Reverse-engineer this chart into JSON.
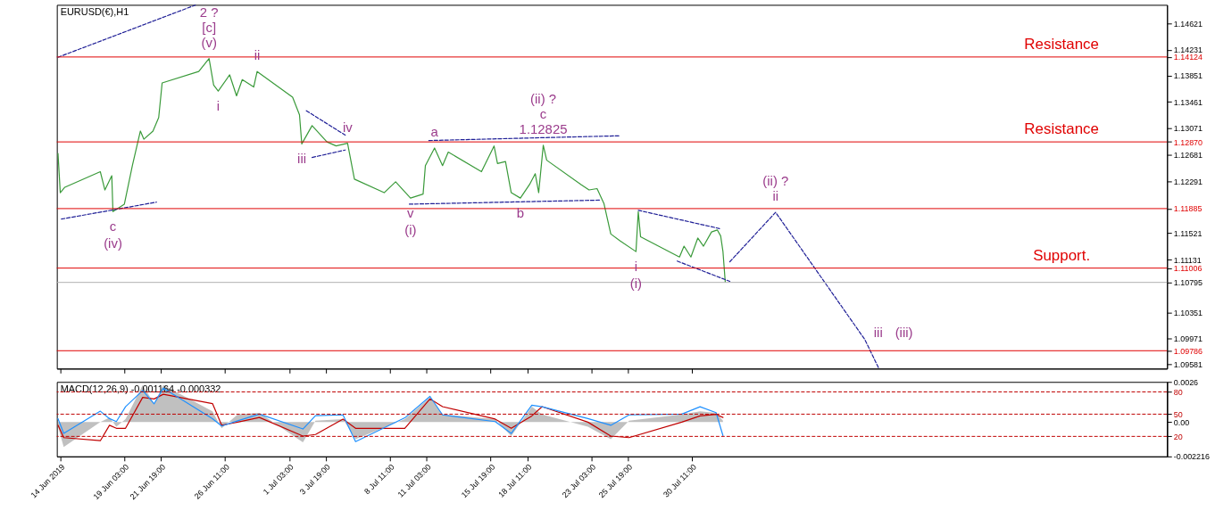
{
  "chart_data": [
    {
      "type": "line",
      "title": "EURUSD(€),H1",
      "tick_labels": "y",
      "xlim": [
        "2019-06-14T05:00",
        "2019-09-03T01:00"
      ],
      "xticks": [
        {
          "value": "2019-06-14T11:00",
          "label": null
        },
        {
          "value": "2019-06-19T03:00",
          "label": null
        },
        {
          "value": "2019-06-21T19:00",
          "label": null
        },
        {
          "value": "2019-06-26T11:00",
          "label": null
        },
        {
          "value": "2019-07-01T03:00",
          "label": null
        },
        {
          "value": "2019-07-03T19:00",
          "label": null
        },
        {
          "value": "2019-07-08T11:00",
          "label": null
        },
        {
          "value": "2019-07-11T03:00",
          "label": null
        },
        {
          "value": "2019-07-15T19:00",
          "label": null
        },
        {
          "value": "2019-07-18T11:00",
          "label": null
        },
        {
          "value": "2019-07-23T03:00",
          "label": null
        },
        {
          "value": "2019-07-25T19:00",
          "label": null
        },
        {
          "value": "2019-07-30T11:00",
          "label": null
        }
      ],
      "ylim": [
        1.09522,
        1.14894
      ],
      "yticks": [
        1.14621,
        1.14231,
        1.14124,
        1.13851,
        1.13461,
        1.13071,
        {
          "value": 1.1287,
          "label": "1.12870"
        },
        1.12681,
        1.12291,
        1.11885,
        1.11521,
        1.11131,
        1.11006,
        1.10795,
        1.10351,
        1.09971,
        1.09786,
        1.09581
      ],
      "series": [
        {
          "color": "#3a9a3a",
          "x": [
            "2019-06-14T07:00",
            "2019-06-14T11:00",
            "2019-06-14T19:00",
            "2019-06-17T09:00",
            "2019-06-17T17:00",
            "2019-06-18T05:00",
            "2019-06-18T07:00",
            "2019-06-19T03:00",
            "2019-06-19T17:00",
            "2019-06-20T07:00",
            "2019-06-20T13:00",
            "2019-06-21T05:00",
            "2019-06-21T15:00",
            "2019-06-21T21:00",
            "2019-06-24T13:00",
            "2019-06-25T07:00",
            "2019-06-25T15:00",
            "2019-06-25T23:00",
            "2019-06-26T19:00",
            "2019-06-27T07:00",
            "2019-06-27T17:00",
            "2019-06-28T13:00",
            "2019-06-28T19:00",
            "2019-07-01T09:00",
            "2019-07-01T21:00",
            "2019-07-02T01:00",
            "2019-07-02T19:00",
            "2019-07-03T21:00",
            "2019-07-04T13:00",
            "2019-07-05T09:00",
            "2019-07-05T21:00",
            "2019-07-08T01:00",
            "2019-07-08T21:00",
            "2019-07-09T23:00",
            "2019-07-10T21:00",
            "2019-07-11T01:00",
            "2019-07-11T17:00",
            "2019-07-12T07:00",
            "2019-07-12T17:00",
            "2019-07-15T03:00",
            "2019-07-16T01:00",
            "2019-07-16T07:00",
            "2019-07-16T21:00",
            "2019-07-17T07:00",
            "2019-07-17T23:00",
            "2019-07-18T15:00",
            "2019-07-19T01:00",
            "2019-07-19T07:00",
            "2019-07-19T15:00",
            "2019-07-19T21:00",
            "2019-07-22T09:00",
            "2019-07-22T23:00",
            "2019-07-23T13:00",
            "2019-07-24T01:00",
            "2019-07-24T13:00",
            "2019-07-25T05:00",
            "2019-07-26T09:00",
            "2019-07-26T13:00",
            "2019-07-26T17:00",
            "2019-07-29T13:00",
            "2019-07-29T21:00",
            "2019-07-30T09:00",
            "2019-07-30T21:00",
            "2019-07-31T07:00",
            "2019-07-31T21:00",
            "2019-08-01T07:00",
            "2019-08-01T13:00",
            "2019-08-01T17:00",
            "2019-08-01T21:00"
          ],
          "values": [
            1.127,
            1.1212,
            1.122,
            1.1243,
            1.1216,
            1.1237,
            1.1184,
            1.1195,
            1.1252,
            1.1303,
            1.1291,
            1.1303,
            1.1323,
            1.1374,
            1.1391,
            1.141,
            1.1371,
            1.1362,
            1.1386,
            1.1355,
            1.1379,
            1.1368,
            1.1391,
            1.1353,
            1.1327,
            1.1284,
            1.1311,
            1.1287,
            1.1281,
            1.1285,
            1.1232,
            1.1212,
            1.1228,
            1.1204,
            1.121,
            1.1252,
            1.1278,
            1.1252,
            1.1272,
            1.1243,
            1.1281,
            1.1255,
            1.1258,
            1.1212,
            1.1204,
            1.1224,
            1.124,
            1.1212,
            1.1282,
            1.126,
            1.1224,
            1.1216,
            1.1218,
            1.1196,
            1.1151,
            1.1141,
            1.1125,
            1.1184,
            1.1147,
            1.1117,
            1.1133,
            1.1117,
            1.1145,
            1.1133,
            1.1154,
            1.1157,
            1.1148,
            1.1125,
            1.108
          ]
        },
        {
          "type": "line",
          "color": "#1e1e96",
          "line_style": "dashed",
          "x": [
            "2019-08-02T05:00",
            "2019-08-05T13:00",
            "2019-08-12T01:00",
            "2019-08-13T01:00"
          ],
          "values": [
            1.111,
            1.1183,
            1.0995,
            1.0953
          ]
        },
        {
          "type": "line",
          "color": "#1e1e96",
          "line_style": "dashed",
          "x": [
            "2019-06-14T07:00",
            "2019-06-24T07:00"
          ],
          "values": [
            1.1412,
            1.1489
          ]
        },
        {
          "type": "line",
          "color": "#1e1e96",
          "line_style": "dashed",
          "x": [
            "2019-06-14T13:00",
            "2019-06-21T11:00"
          ],
          "values": [
            1.1173,
            1.1198
          ]
        },
        {
          "type": "line",
          "color": "#1e1e96",
          "line_style": "dashed",
          "x": [
            "2019-07-02T09:00",
            "2019-07-05T05:00"
          ],
          "values": [
            1.1333,
            1.1297
          ]
        },
        {
          "type": "line",
          "color": "#1e1e96",
          "line_style": "dashed",
          "x": [
            "2019-07-02T19:00",
            "2019-07-05T05:00"
          ],
          "values": [
            1.1264,
            1.1275
          ]
        },
        {
          "type": "line",
          "color": "#1e1e96",
          "line_style": "dashed",
          "x": [
            "2019-07-09T21:00",
            "2019-07-23T17:00"
          ],
          "values": [
            1.1195,
            1.1201
          ]
        },
        {
          "type": "line",
          "color": "#1e1e96",
          "line_style": "dashed",
          "x": [
            "2019-07-11T07:00",
            "2019-07-25T03:00"
          ],
          "values": [
            1.1289,
            1.1296
          ]
        },
        {
          "type": "line",
          "color": "#1e1e96",
          "line_style": "dashed",
          "x": [
            "2019-07-26T13:00",
            "2019-08-01T11:00"
          ],
          "values": [
            1.1186,
            1.1159
          ]
        },
        {
          "type": "line",
          "color": "#1e1e96",
          "line_style": "dashed",
          "x": [
            "2019-07-29T09:00",
            "2019-08-02T05:00"
          ],
          "values": [
            1.1111,
            1.1081
          ]
        }
      ],
      "ref_lines": [
        {
          "axis": "y",
          "value": 1.14124,
          "label": "Resistance",
          "color": "#e00000"
        },
        {
          "axis": "y",
          "value": 1.1287,
          "label": "Resistance",
          "color": "#e00000"
        },
        {
          "axis": "y",
          "value": 1.11885,
          "color": "#e00000"
        },
        {
          "axis": "y",
          "value": 1.11006,
          "label": "Support.",
          "color": "#e00000"
        },
        {
          "axis": "y",
          "value": 1.10795,
          "color": "#b0b0b0"
        },
        {
          "axis": "y",
          "value": 1.09786,
          "color": "#e00000"
        }
      ],
      "annotations": [
        {
          "text": "(v)",
          "x": "2019-06-25T07:00",
          "y": 1.141
        },
        {
          "text": "[c]",
          "x": "2019-06-25T07:00",
          "y": 1.141
        },
        {
          "text": "2 ?",
          "x": "2019-06-25T07:00",
          "y": 1.141
        },
        {
          "text": "ii",
          "x": "2019-06-28T19:00",
          "y": 1.1391
        },
        {
          "text": "i",
          "x": "2019-06-25T23:00",
          "y": 1.1362
        },
        {
          "text": "iii",
          "x": "2019-07-02T01:00",
          "y": 1.1284
        },
        {
          "text": "iv",
          "x": "2019-07-05T09:00",
          "y": 1.1285
        },
        {
          "text": "c",
          "x": "2019-06-18T07:00",
          "y": 1.1184
        },
        {
          "text": "(iv)",
          "x": "2019-06-18T07:00",
          "y": 1.1184
        },
        {
          "text": "v",
          "x": "2019-07-09T23:00",
          "y": 1.1204
        },
        {
          "text": "(i)",
          "x": "2019-07-09T23:00",
          "y": 1.1204
        },
        {
          "text": "a",
          "x": "2019-07-11T17:00",
          "y": 1.1278
        },
        {
          "text": "b",
          "x": "2019-07-17T23:00",
          "y": 1.1204
        },
        {
          "text": "1.12825",
          "x": "2019-07-19T15:00",
          "y": 1.1282
        },
        {
          "text": "c",
          "x": "2019-07-19T15:00",
          "y": 1.1282
        },
        {
          "text": "(ii) ?",
          "x": "2019-07-19T15:00",
          "y": 1.1282
        },
        {
          "text": "i",
          "x": "2019-07-26T09:00",
          "y": 1.1125
        },
        {
          "text": "(i)",
          "x": "2019-07-26T09:00",
          "y": 1.1125
        },
        {
          "text": "ii",
          "x": "2019-08-05T13:00",
          "y": 1.1183
        },
        {
          "text": "(ii) ?",
          "x": "2019-08-05T13:00",
          "y": 1.1183
        },
        {
          "text": "iii",
          "x": "2019-08-12T01:00",
          "y": 1.0995
        },
        {
          "text": "(iii)",
          "x": "2019-08-12T01:00",
          "y": 1.0995
        }
      ]
    },
    {
      "type": "line",
      "title": "MACD(12,26,9) -0.001164 -0.000332",
      "xlim": [
        "2019-06-14T05:00",
        "2019-09-03T01:00"
      ],
      "xticks": [
        {
          "value": "2019-06-14T11:00",
          "label": "14 Jun 2019"
        },
        {
          "value": "2019-06-19T03:00",
          "label": "19 Jun 03:00"
        },
        {
          "value": "2019-06-21T19:00",
          "label": "21 Jun 19:00"
        },
        {
          "value": "2019-06-26T11:00",
          "label": "26 Jun 11:00"
        },
        {
          "value": "2019-07-01T03:00",
          "label": "1 Jul 03:00"
        },
        {
          "value": "2019-07-03T19:00",
          "label": "3 Jul 19:00"
        },
        {
          "value": "2019-07-08T11:00",
          "label": "8 Jul 11:00"
        },
        {
          "value": "2019-07-11T03:00",
          "label": "11 Jul 03:00"
        },
        {
          "value": "2019-07-15T19:00",
          "label": "15 Jul 19:00"
        },
        {
          "value": "2019-07-18T11:00",
          "label": "18 Jul 11:00"
        },
        {
          "value": "2019-07-23T03:00",
          "label": "23 Jul 03:00"
        },
        {
          "value": "2019-07-25T19:00",
          "label": "25 Jul 19:00"
        },
        {
          "value": "2019-07-30T11:00",
          "label": "30 Jul 11:00"
        }
      ],
      "ylim": [
        -0.002216,
        0.0026
      ],
      "yticks": [
        0.0026,
        {
          "value": 0,
          "label": "0.00"
        },
        -0.002216
      ],
      "y2lim": [
        -7,
        93.5
      ],
      "y2ticks": [
        20,
        50,
        80
      ],
      "x": [
        "2019-06-14T07:00",
        "2019-06-14T17:00",
        "2019-06-17T09:00",
        "2019-06-18T01:00",
        "2019-06-18T13:00",
        "2019-06-19T05:00",
        "2019-06-20T11:00",
        "2019-06-21T07:00",
        "2019-06-21T23:00",
        "2019-06-25T13:00",
        "2019-06-26T05:00",
        "2019-06-27T09:00",
        "2019-06-28T23:00",
        "2019-07-02T03:00",
        "2019-07-03T01:00",
        "2019-07-05T01:00",
        "2019-07-05T23:00",
        "2019-07-09T13:00",
        "2019-07-11T09:00",
        "2019-07-12T07:00",
        "2019-07-16T03:00",
        "2019-07-17T07:00",
        "2019-07-18T19:00",
        "2019-07-19T13:00",
        "2019-07-22T21:00",
        "2019-07-24T13:00",
        "2019-07-25T21:00",
        "2019-07-29T17:00",
        "2019-07-31T01:00",
        "2019-08-01T05:00",
        "2019-08-01T17:00"
      ],
      "series": [
        {
          "type": "area",
          "color": "#c0c0c0",
          "values": [
            -0.0003,
            -0.0016,
            0.0,
            0.0003,
            -0.0003,
            0.0002,
            0.0024,
            0.0012,
            0.0024,
            0.0007,
            -0.0004,
            0.0005,
            0.0006,
            -0.0013,
            0.0001,
            0.0002,
            -0.0011,
            0.0002,
            0.0016,
            0.0005,
            0.0002,
            -0.0009,
            0.001,
            0.0005,
            -0.0003,
            -0.0011,
            0.0001,
            0.0005,
            0.0007,
            0.0006,
            0.0001
          ]
        },
        {
          "type": "line",
          "color": "#c00000",
          "values": [
            -0.0002,
            -0.001,
            -0.0012,
            -0.0002,
            -0.0004,
            -0.0004,
            0.0016,
            0.0015,
            0.0018,
            0.0012,
            -0.0002,
            0.0,
            0.0003,
            -0.0009,
            -0.0008,
            0.0002,
            -0.0004,
            -0.0004,
            0.0015,
            0.001,
            0.0002,
            -0.0004,
            0.0004,
            0.001,
            0.0,
            -0.0009,
            -0.001,
            0.0,
            0.0004,
            0.0005,
            0.0003
          ]
        },
        {
          "type": "line",
          "color": "#1e90ff",
          "axis": "y2",
          "values": [
            44,
            24,
            54,
            44,
            40,
            60,
            82,
            64,
            85,
            44,
            34,
            41,
            50,
            30,
            48,
            49,
            13,
            45,
            74,
            49,
            40,
            24,
            62,
            60,
            44,
            35,
            49,
            50,
            60,
            52,
            21
          ]
        }
      ],
      "ref_lines": [
        {
          "axis": "y2",
          "value": 80,
          "color": "#c00000",
          "line_style": "dashed"
        },
        {
          "axis": "y2",
          "value": 50,
          "color": "#c00000",
          "line_style": "dashed"
        },
        {
          "axis": "y2",
          "value": 20,
          "color": "#c00000",
          "line_style": "dashed"
        }
      ]
    }
  ]
}
